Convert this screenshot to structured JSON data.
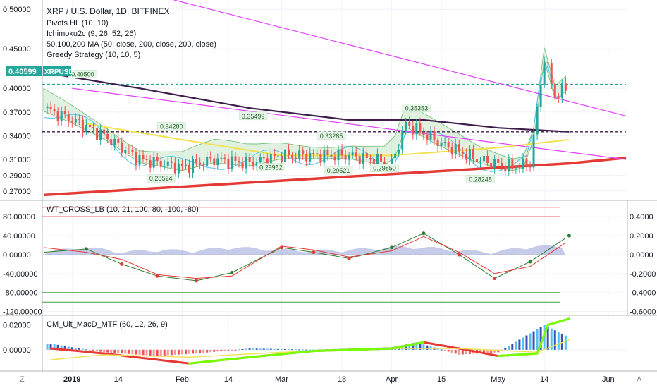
{
  "header": {
    "symbol_line": "XRP / U.S. Dollar, 1D, BITFINEX",
    "indicators": [
      "Pivots HL (10, 10)",
      "Ichimoku2c (9, 26, 52, 26)",
      "50,100,200 MA (50, close, 200, close, 200, close)",
      "Greedy Strategy (10, 10, 5)"
    ]
  },
  "price_badge": {
    "value": "0.40599",
    "symbol": "XRPUSD",
    "color": "#26a69a"
  },
  "pivot_labels": [
    "0.40500",
    "0.35353",
    "0.34280",
    "0.35499",
    "0.33285",
    "0.28524",
    "0.29952",
    "0.29521",
    "0.29850",
    "0.28248"
  ],
  "osc_panel": {
    "title": "WT_CROSS_LB (10, 21, 100, 80, -100, -80)"
  },
  "macd_panel": {
    "title": "CM_Ult_MacD_MTF (60, 12, 26, 9)"
  },
  "x_ticks": [
    "2019",
    "14",
    "Feb",
    "14",
    "Mar",
    "18",
    "Apr",
    "15",
    "May",
    "14",
    "Jun"
  ],
  "corner_left": "Z",
  "corner_right": "A",
  "chart_data": [
    {
      "type": "line",
      "panel": "price",
      "title": "XRP / U.S. Dollar, 1D, BITFINEX",
      "x_range": [
        "2018-12-24",
        "2019-06-06"
      ],
      "ylim": [
        0.26,
        0.51
      ],
      "y_ticks": [
        0.5,
        0.45,
        0.4,
        0.37,
        0.34,
        0.31,
        0.29,
        0.27
      ],
      "y_tick_labels": [
        "0.50000",
        "0.45000",
        "0.40000",
        "0.37000",
        "0.34000",
        "0.31000",
        "0.29000",
        "0.27000"
      ],
      "current_price": 0.40599,
      "series": [
        {
          "name": "XRPUSD",
          "color": "#26a69a",
          "x": [
            "2018-12-24",
            "2019-01-01",
            "2019-01-10",
            "2019-01-20",
            "2019-02-01",
            "2019-02-10",
            "2019-02-20",
            "2019-03-01",
            "2019-03-10",
            "2019-03-20",
            "2019-04-01",
            "2019-04-05",
            "2019-04-15",
            "2019-04-25",
            "2019-05-05",
            "2019-05-10",
            "2019-05-14",
            "2019-05-17",
            "2019-05-20"
          ],
          "values": [
            0.375,
            0.36,
            0.34,
            0.31,
            0.3,
            0.31,
            0.305,
            0.315,
            0.315,
            0.315,
            0.305,
            0.355,
            0.33,
            0.31,
            0.3,
            0.305,
            0.44,
            0.39,
            0.4
          ]
        },
        {
          "name": "",
          "color": "#3d1e4a",
          "x": [
            "2018-12-24",
            "2019-01-20",
            "2019-02-20",
            "2019-03-20",
            "2019-04-10",
            "2019-05-01",
            "2019-05-21"
          ],
          "values": [
            0.42,
            0.4,
            0.375,
            0.36,
            0.36,
            0.35,
            0.345
          ]
        },
        {
          "name": "",
          "color": "#f2e24f",
          "x": [
            "2019-01-05",
            "2019-02-01",
            "2019-03-01",
            "2019-04-01",
            "2019-05-01",
            "2019-05-21"
          ],
          "values": [
            0.355,
            0.335,
            0.315,
            0.315,
            0.325,
            0.335
          ]
        },
        {
          "name": "",
          "color": "#e53935",
          "x": [
            "2018-12-24",
            "2019-05-21",
            "2019-06-06"
          ],
          "values": [
            0.265,
            0.305,
            0.312
          ]
        },
        {
          "name": "",
          "color": "#e040fb",
          "x": [
            "2019-01-01",
            "2019-06-06"
          ],
          "values": [
            0.545,
            0.365
          ]
        },
        {
          "name": "",
          "color": "#e040fb",
          "x": [
            "2019-01-01",
            "2019-06-06"
          ],
          "values": [
            0.4,
            0.31
          ]
        }
      ],
      "hlines": [
        {
          "value": 0.405,
          "color": "#26a69a",
          "style": "dashed"
        },
        {
          "value": 0.345,
          "color": "#3d1e4a",
          "style": "dashed"
        }
      ]
    },
    {
      "type": "line",
      "panel": "oscillator",
      "title": "WT_CROSS_LB (10, 21, 100, 80, -100, -80)",
      "ylim": [
        -125,
        110
      ],
      "y_ticks_left": [
        80,
        40,
        0,
        -40,
        -80,
        -120
      ],
      "y_tick_labels_left": [
        "80.00000",
        "40.00000",
        "0.00000",
        "-40.00000",
        "-80.00000",
        "-120.00000"
      ],
      "y_tick_labels_right": [
        "0.4000",
        "0.2000",
        "0.0000",
        "-0.2000",
        "-0.4000",
        "-0.6000"
      ],
      "levels": [
        100,
        80,
        -80,
        -100
      ],
      "series": [
        {
          "name": "",
          "color": "#2e7d32",
          "x": [
            "2018-12-24",
            "2019-01-05",
            "2019-01-15",
            "2019-01-25",
            "2019-02-05",
            "2019-02-15",
            "2019-03-01",
            "2019-03-10",
            "2019-03-20",
            "2019-04-01",
            "2019-04-10",
            "2019-04-20",
            "2019-04-30",
            "2019-05-10",
            "2019-05-21"
          ],
          "values": [
            5,
            12,
            -20,
            -45,
            -55,
            -38,
            15,
            5,
            -8,
            15,
            45,
            0,
            -50,
            -15,
            40
          ]
        },
        {
          "name": "",
          "color": "#e53935",
          "x": [
            "2018-12-24",
            "2019-01-05",
            "2019-01-15",
            "2019-01-25",
            "2019-02-05",
            "2019-02-15",
            "2019-03-01",
            "2019-03-10",
            "2019-03-20",
            "2019-04-01",
            "2019-04-10",
            "2019-04-20",
            "2019-04-30",
            "2019-05-10",
            "2019-05-21"
          ],
          "values": [
            15,
            5,
            -10,
            -42,
            -50,
            -45,
            18,
            10,
            -5,
            8,
            38,
            5,
            -40,
            -25,
            30
          ]
        }
      ]
    },
    {
      "type": "bar",
      "panel": "macd",
      "title": "CM_Ult_MacD_MTF (60, 12, 26, 9)",
      "ylim": [
        -0.016,
        0.026
      ],
      "y_ticks": [
        0.02,
        0.0
      ],
      "y_tick_labels": [
        "0.02000",
        "0.00000"
      ],
      "x": [
        "2018-12-26",
        "2019-01-01",
        "2019-01-10",
        "2019-01-25",
        "2019-02-05",
        "2019-02-20",
        "2019-03-10",
        "2019-04-01",
        "2019-04-08",
        "2019-04-20",
        "2019-05-01",
        "2019-05-14",
        "2019-05-21"
      ],
      "values": [
        0.005,
        0.002,
        -0.002,
        -0.005,
        -0.003,
        0.001,
        0.0,
        0.002,
        0.006,
        -0.004,
        -0.002,
        0.02,
        0.01
      ],
      "series": [
        {
          "name": "",
          "color": "#e53935",
          "x": [
            "2018-12-26",
            "2019-01-10",
            "2019-01-25",
            "2019-02-03",
            "2019-02-20",
            "2019-03-10",
            "2019-04-01",
            "2019-04-10",
            "2019-04-22",
            "2019-05-01",
            "2019-05-12",
            "2019-05-15",
            "2019-05-21"
          ],
          "values": [
            0.001,
            -0.003,
            -0.008,
            -0.011,
            -0.006,
            -0.001,
            0.001,
            0.006,
            0.0,
            -0.005,
            -0.003,
            0.02,
            0.025
          ]
        },
        {
          "name": "",
          "color": "#f2e24f",
          "x": [
            "2018-12-26",
            "2019-01-10",
            "2019-02-03",
            "2019-03-01",
            "2019-04-01",
            "2019-04-20",
            "2019-05-12",
            "2019-05-21"
          ],
          "values": [
            -0.008,
            -0.004,
            -0.006,
            -0.002,
            0.001,
            0.001,
            -0.002,
            0.008
          ]
        }
      ]
    }
  ]
}
